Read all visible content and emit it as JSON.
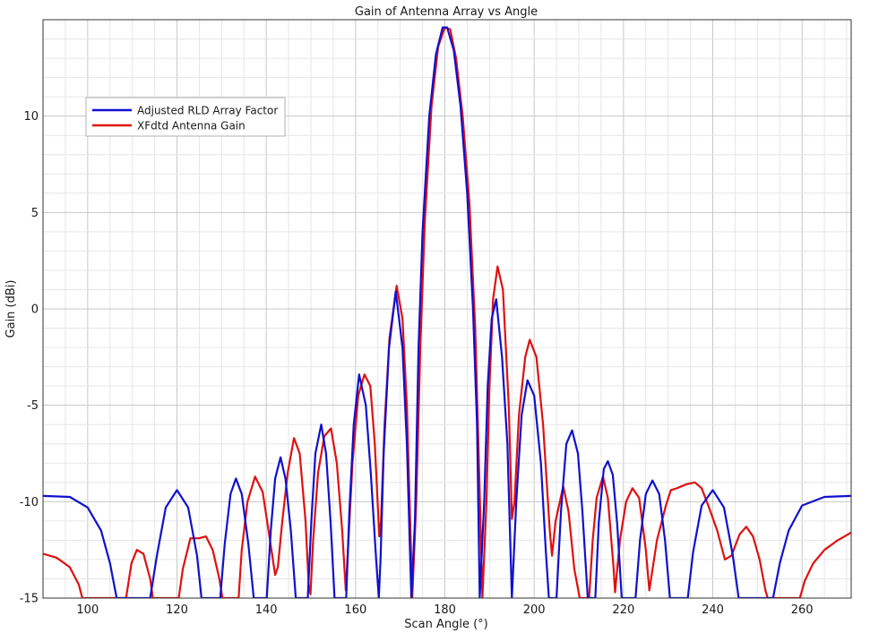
{
  "chart_data": {
    "type": "line",
    "title": "Gain of Antenna Array vs Angle",
    "xlabel": "Scan Angle (°)",
    "ylabel": "Gain (dBi)",
    "xlim": [
      90,
      271
    ],
    "ylim": [
      -15,
      15
    ],
    "x_ticks": [
      100,
      120,
      140,
      160,
      180,
      200,
      220,
      240,
      260
    ],
    "y_ticks": [
      -15,
      -10,
      -5,
      0,
      5,
      10
    ],
    "x_tick_labels": [
      "100",
      "120",
      "140",
      "160",
      "180",
      "200",
      "220",
      "240",
      "260"
    ],
    "y_tick_labels": [
      "-15",
      "-10",
      "-5",
      "0",
      "5",
      "10"
    ],
    "grid": true,
    "legend_position": "top-left",
    "series": [
      {
        "name": "Adjusted RLD Array Factor",
        "color": "#1010d0",
        "points": [
          [
            90,
            -9.7
          ],
          [
            96,
            -9.75
          ],
          [
            100,
            -10.3
          ],
          [
            103,
            -11.5
          ],
          [
            105,
            -13.2
          ],
          [
            106.5,
            -15
          ],
          [
            114,
            -15
          ],
          [
            115.5,
            -12.8
          ],
          [
            117.5,
            -10.3
          ],
          [
            120,
            -9.4
          ],
          [
            122.5,
            -10.3
          ],
          [
            124.5,
            -12.8
          ],
          [
            125.5,
            -15
          ],
          [
            129.7,
            -15
          ],
          [
            130.7,
            -12.2
          ],
          [
            132,
            -9.6
          ],
          [
            133.2,
            -8.8
          ],
          [
            134.5,
            -9.6
          ],
          [
            136,
            -12.2
          ],
          [
            137.2,
            -15
          ],
          [
            140.1,
            -15
          ],
          [
            141,
            -11.5
          ],
          [
            142,
            -8.8
          ],
          [
            143.2,
            -7.7
          ],
          [
            144.3,
            -8.8
          ],
          [
            145.5,
            -11.5
          ],
          [
            146.6,
            -15
          ],
          [
            149.3,
            -15
          ],
          [
            150.1,
            -11
          ],
          [
            151,
            -7.5
          ],
          [
            152.3,
            -6.0
          ],
          [
            153.4,
            -7.5
          ],
          [
            154.4,
            -11
          ],
          [
            155.3,
            -15
          ],
          [
            157.9,
            -15
          ],
          [
            158.6,
            -10.5
          ],
          [
            159.6,
            -6
          ],
          [
            160.8,
            -3.4
          ],
          [
            162.3,
            -5
          ],
          [
            163.4,
            -8.5
          ],
          [
            164.6,
            -13
          ],
          [
            165.2,
            -15
          ],
          [
            165.6,
            -13
          ],
          [
            166.3,
            -7.5
          ],
          [
            167.5,
            -2
          ],
          [
            169,
            0.9
          ],
          [
            170.5,
            -2
          ],
          [
            171.5,
            -7
          ],
          [
            172.5,
            -15
          ],
          [
            173.3,
            -11
          ],
          [
            174.1,
            -2
          ],
          [
            175,
            4
          ],
          [
            176.5,
            10
          ],
          [
            178,
            13.2
          ],
          [
            179.5,
            14.6
          ],
          [
            180.5,
            14.6
          ],
          [
            182,
            13.4
          ],
          [
            183.5,
            10.5
          ],
          [
            185,
            6
          ],
          [
            186.3,
            0
          ],
          [
            187.2,
            -6
          ],
          [
            187.8,
            -15
          ],
          [
            188.8,
            -10
          ],
          [
            189.6,
            -4
          ],
          [
            190.5,
            -0.5
          ],
          [
            191.5,
            0.5
          ],
          [
            192.8,
            -2.5
          ],
          [
            194,
            -7
          ],
          [
            195,
            -15
          ],
          [
            196,
            -10
          ],
          [
            197.2,
            -5.5
          ],
          [
            198.5,
            -3.7
          ],
          [
            200,
            -4.5
          ],
          [
            201.5,
            -8
          ],
          [
            202.6,
            -12.5
          ],
          [
            203.3,
            -15
          ],
          [
            205,
            -15
          ],
          [
            206,
            -10.5
          ],
          [
            207.2,
            -7
          ],
          [
            208.5,
            -6.3
          ],
          [
            209.8,
            -7.5
          ],
          [
            210.8,
            -10.5
          ],
          [
            212,
            -15
          ],
          [
            213.7,
            -15
          ],
          [
            214.5,
            -11
          ],
          [
            215.6,
            -8.3
          ],
          [
            216.5,
            -7.9
          ],
          [
            217.6,
            -8.6
          ],
          [
            218.6,
            -11.2
          ],
          [
            219.6,
            -15
          ],
          [
            222.7,
            -15
          ],
          [
            223.7,
            -12
          ],
          [
            225,
            -9.6
          ],
          [
            226.5,
            -8.9
          ],
          [
            228,
            -9.6
          ],
          [
            229.3,
            -12
          ],
          [
            230.4,
            -15
          ],
          [
            234.4,
            -15
          ],
          [
            235.6,
            -12.6
          ],
          [
            237.5,
            -10.2
          ],
          [
            240,
            -9.4
          ],
          [
            242.5,
            -10.3
          ],
          [
            244.5,
            -12.8
          ],
          [
            245.8,
            -15
          ],
          [
            253.5,
            -15
          ],
          [
            255,
            -13.2
          ],
          [
            257,
            -11.5
          ],
          [
            260,
            -10.2
          ],
          [
            265,
            -9.75
          ],
          [
            271,
            -9.7
          ]
        ]
      },
      {
        "name": "XFdtd Antenna Gain",
        "color": "#e01010",
        "points": [
          [
            90,
            -12.7
          ],
          [
            93,
            -12.9
          ],
          [
            96,
            -13.4
          ],
          [
            98,
            -14.3
          ],
          [
            98.8,
            -15
          ],
          [
            108.6,
            -15
          ],
          [
            109.8,
            -13.2
          ],
          [
            111,
            -12.5
          ],
          [
            112.5,
            -12.7
          ],
          [
            114,
            -14
          ],
          [
            114.6,
            -15
          ],
          [
            120.4,
            -15
          ],
          [
            121.3,
            -13.5
          ],
          [
            123,
            -11.9
          ],
          [
            125,
            -11.9
          ],
          [
            126.5,
            -11.8
          ],
          [
            128,
            -12.5
          ],
          [
            129.5,
            -14
          ],
          [
            130.2,
            -15
          ],
          [
            133.8,
            -15
          ],
          [
            134.5,
            -12.5
          ],
          [
            135.8,
            -10
          ],
          [
            137.5,
            -8.7
          ],
          [
            139.2,
            -9.5
          ],
          [
            140.5,
            -11.5
          ],
          [
            142,
            -13.8
          ],
          [
            142.6,
            -13.4
          ],
          [
            143.6,
            -11
          ],
          [
            144.8,
            -8.5
          ],
          [
            146.2,
            -6.7
          ],
          [
            147.5,
            -7.5
          ],
          [
            148.8,
            -11
          ],
          [
            149.5,
            -14.3
          ],
          [
            149.9,
            -14.8
          ],
          [
            150.5,
            -12
          ],
          [
            151.6,
            -8.5
          ],
          [
            153,
            -6.6
          ],
          [
            154.5,
            -6.2
          ],
          [
            155.8,
            -8
          ],
          [
            157,
            -11.5
          ],
          [
            157.8,
            -14.6
          ],
          [
            158.4,
            -12
          ],
          [
            159.3,
            -8
          ],
          [
            160.6,
            -4.5
          ],
          [
            162,
            -3.4
          ],
          [
            163.3,
            -4
          ],
          [
            164.3,
            -7
          ],
          [
            165.3,
            -11.8
          ],
          [
            165.7,
            -11
          ],
          [
            166.5,
            -6
          ],
          [
            167.6,
            -1.5
          ],
          [
            169.2,
            1.2
          ],
          [
            170.5,
            -0.5
          ],
          [
            171.5,
            -5
          ],
          [
            172.3,
            -11.5
          ],
          [
            172.7,
            -15
          ],
          [
            173.6,
            -10
          ],
          [
            174.5,
            -2
          ],
          [
            175.5,
            4.5
          ],
          [
            177,
            10.5
          ],
          [
            178.5,
            13.6
          ],
          [
            180,
            14.6
          ],
          [
            181.2,
            14.5
          ],
          [
            182.5,
            13
          ],
          [
            184,
            10
          ],
          [
            185.5,
            5.5
          ],
          [
            186.8,
            -1
          ],
          [
            187.8,
            -9.5
          ],
          [
            188.4,
            -15
          ],
          [
            189.3,
            -10
          ],
          [
            190,
            -4
          ],
          [
            190.8,
            0.5
          ],
          [
            191.8,
            2.2
          ],
          [
            193,
            1
          ],
          [
            194.3,
            -5
          ],
          [
            195,
            -10.9
          ],
          [
            195.6,
            -10
          ],
          [
            196.6,
            -5.5
          ],
          [
            198,
            -2.5
          ],
          [
            199,
            -1.6
          ],
          [
            200.5,
            -2.5
          ],
          [
            202,
            -6
          ],
          [
            203.5,
            -11.5
          ],
          [
            204,
            -12.8
          ],
          [
            204.8,
            -11
          ],
          [
            206.5,
            -9.2
          ],
          [
            207.7,
            -10.5
          ],
          [
            209,
            -13.5
          ],
          [
            210.2,
            -15
          ],
          [
            212.3,
            -15
          ],
          [
            213.1,
            -12
          ],
          [
            214,
            -9.8
          ],
          [
            215.4,
            -8.7
          ],
          [
            216.5,
            -9.8
          ],
          [
            217.8,
            -13.5
          ],
          [
            218.1,
            -14.7
          ],
          [
            219.2,
            -12
          ],
          [
            220.6,
            -10
          ],
          [
            222,
            -9.3
          ],
          [
            223.5,
            -9.8
          ],
          [
            225,
            -12.5
          ],
          [
            225.8,
            -14.6
          ],
          [
            227.5,
            -12
          ],
          [
            229.5,
            -10.2
          ],
          [
            230.6,
            -9.4
          ],
          [
            232,
            -9.3
          ],
          [
            234,
            -9.1
          ],
          [
            236,
            -9.0
          ],
          [
            237.5,
            -9.3
          ],
          [
            239,
            -10.2
          ],
          [
            241,
            -11.5
          ],
          [
            242.7,
            -13.0
          ],
          [
            244.2,
            -12.8
          ],
          [
            246,
            -11.7
          ],
          [
            247.5,
            -11.3
          ],
          [
            249,
            -11.8
          ],
          [
            250.5,
            -13
          ],
          [
            251.8,
            -14.6
          ],
          [
            252.3,
            -15
          ],
          [
            259.5,
            -15
          ],
          [
            260.6,
            -14.1
          ],
          [
            262.5,
            -13.2
          ],
          [
            265,
            -12.5
          ],
          [
            268,
            -12.0
          ],
          [
            271,
            -11.6
          ]
        ]
      }
    ]
  }
}
